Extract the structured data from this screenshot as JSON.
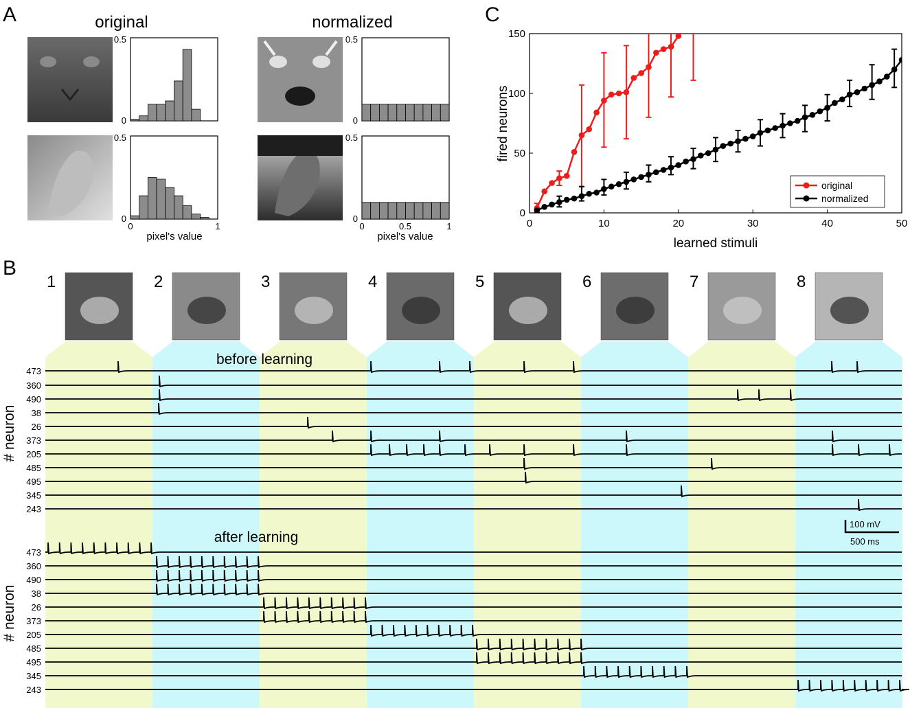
{
  "panels": {
    "A": {
      "label": "A",
      "col_titles": [
        "original",
        "normalized"
      ],
      "xlabel": "pixel's value",
      "ymax_label": "0.5",
      "ymin_label": "0",
      "xtick_labels": [
        "0",
        "0.5",
        "1"
      ]
    },
    "B": {
      "label": "B",
      "stim_numbers": [
        "1",
        "2",
        "3",
        "4",
        "5",
        "6",
        "7",
        "8"
      ],
      "before_title": "before learning",
      "after_title": "after learning",
      "ylabel": "# neuron",
      "neuron_ids": [
        "473",
        "360",
        "490",
        "38",
        "26",
        "373",
        "205",
        "485",
        "495",
        "345",
        "243"
      ],
      "scalebar_v": "100 mV",
      "scalebar_h": "500 ms",
      "band_colors": [
        "#f0f8cc",
        "#ccf8fb"
      ]
    },
    "C": {
      "label": "C"
    }
  },
  "chart_data": [
    {
      "id": "A-hist-orig-1",
      "type": "bar",
      "bins": [
        0.05,
        0.15,
        0.25,
        0.35,
        0.45,
        0.55,
        0.65,
        0.75,
        0.85,
        0.95
      ],
      "values": [
        0.01,
        0.03,
        0.1,
        0.1,
        0.12,
        0.24,
        0.43,
        0.07,
        0,
        0
      ],
      "ylim": [
        0,
        0.5
      ],
      "xlim": [
        0,
        1
      ]
    },
    {
      "id": "A-hist-orig-2",
      "type": "bar",
      "bins": [
        0.05,
        0.15,
        0.25,
        0.35,
        0.45,
        0.55,
        0.65,
        0.75,
        0.85,
        0.95
      ],
      "values": [
        0.02,
        0.14,
        0.25,
        0.24,
        0.19,
        0.14,
        0.08,
        0.03,
        0.01,
        0
      ],
      "ylim": [
        0,
        0.5
      ],
      "xlim": [
        0,
        1
      ]
    },
    {
      "id": "A-hist-norm-1",
      "type": "bar",
      "bins": [
        0.05,
        0.15,
        0.25,
        0.35,
        0.45,
        0.55,
        0.65,
        0.75,
        0.85,
        0.95
      ],
      "values": [
        0.1,
        0.1,
        0.1,
        0.1,
        0.1,
        0.1,
        0.1,
        0.1,
        0.1,
        0.1
      ],
      "ylim": [
        0,
        0.5
      ],
      "xlim": [
        0,
        1
      ]
    },
    {
      "id": "A-hist-norm-2",
      "type": "bar",
      "bins": [
        0.05,
        0.15,
        0.25,
        0.35,
        0.45,
        0.55,
        0.65,
        0.75,
        0.85,
        0.95
      ],
      "values": [
        0.1,
        0.1,
        0.1,
        0.1,
        0.1,
        0.1,
        0.1,
        0.1,
        0.1,
        0.1
      ],
      "ylim": [
        0,
        0.5
      ],
      "xlim": [
        0,
        1
      ]
    },
    {
      "id": "C-line",
      "type": "line",
      "xlabel": "learned stimuli",
      "ylabel": "fired neurons",
      "xlim": [
        0,
        50
      ],
      "ylim": [
        0,
        150
      ],
      "xticks": [
        0,
        10,
        20,
        30,
        40,
        50
      ],
      "yticks": [
        0,
        50,
        100,
        150
      ],
      "legend": "bottom-right",
      "series": [
        {
          "name": "original",
          "color": "#ee1c1c",
          "x": [
            1,
            2,
            3,
            4,
            5,
            6,
            7,
            8,
            9,
            10,
            11,
            12,
            13,
            14,
            15,
            16,
            17,
            18,
            19,
            20
          ],
          "y": [
            4,
            18,
            25,
            29,
            31,
            51,
            65,
            70,
            84,
            94,
            99,
            100,
            101,
            113,
            117,
            122,
            134,
            137,
            139,
            148
          ],
          "err_x": [
            1,
            4,
            7,
            10,
            13,
            16,
            19,
            22
          ],
          "err_lo": [
            0,
            23,
            22,
            55,
            62,
            80,
            97,
            111
          ],
          "err_hi": [
            8,
            35,
            107,
            134,
            140,
            158,
            160,
            165
          ]
        },
        {
          "name": "normalized",
          "color": "#000000",
          "x": [
            1,
            2,
            3,
            4,
            5,
            6,
            7,
            8,
            9,
            10,
            11,
            12,
            13,
            14,
            15,
            16,
            17,
            18,
            19,
            20,
            21,
            22,
            23,
            24,
            25,
            26,
            27,
            28,
            29,
            30,
            31,
            32,
            33,
            34,
            35,
            36,
            37,
            38,
            39,
            40,
            41,
            42,
            43,
            44,
            45,
            46,
            47,
            48,
            49,
            50
          ],
          "y": [
            2,
            5,
            7,
            9,
            11,
            12,
            14,
            16,
            17,
            20,
            22,
            24,
            26,
            28,
            30,
            32,
            34,
            36,
            38,
            40,
            43,
            45,
            48,
            50,
            53,
            56,
            58,
            60,
            62,
            64,
            67,
            69,
            71,
            73,
            75,
            77,
            80,
            82,
            85,
            88,
            92,
            95,
            99,
            101,
            104,
            107,
            110,
            114,
            120,
            128
          ],
          "err_x": [
            1,
            4,
            7,
            10,
            13,
            16,
            19,
            22,
            25,
            28,
            31,
            34,
            37,
            40,
            43,
            46,
            49
          ],
          "err_lo": [
            0,
            5,
            10,
            15,
            20,
            26,
            32,
            37,
            43,
            51,
            56,
            63,
            68,
            77,
            89,
            95,
            105
          ],
          "err_hi": [
            3,
            14,
            22,
            28,
            34,
            40,
            47,
            54,
            63,
            69,
            78,
            83,
            90,
            99,
            111,
            124,
            137
          ]
        }
      ]
    }
  ]
}
